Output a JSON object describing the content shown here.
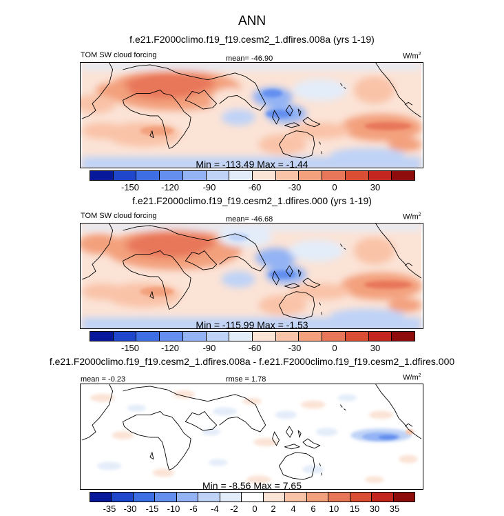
{
  "main_title": "ANN",
  "colors": {
    "cbar1": [
      "#08189b",
      "#1f47cc",
      "#3d6ee4",
      "#648fef",
      "#93b3f4",
      "#bfd3f7",
      "#e3ecf9",
      "#fbe3d6",
      "#f9c3a8",
      "#f3a07d",
      "#e8775a",
      "#da4e33",
      "#c2261e",
      "#8f0c0d"
    ],
    "cbar2": [
      "#08189b",
      "#1f47cc",
      "#3d6ee4",
      "#648fef",
      "#93b3f4",
      "#bfd3f7",
      "#e3ecf9",
      "#ffffff",
      "#fbe3d6",
      "#f9c3a8",
      "#f3a07d",
      "#e8775a",
      "#da4e33",
      "#c2261e",
      "#8f0c0d"
    ]
  },
  "panels": [
    {
      "title": "f.e21.F2000climo.f19_f19.cesm2_1.dfires.008a (yrs 1-19)",
      "left_label": "TOM SW cloud forcing",
      "mean_label": "mean= -46.90",
      "units": "W/m",
      "units_sup": "2",
      "minmax": "Min = -113.49 Max =  -1.44"
    },
    {
      "title": "f.e21.F2000climo.f19_f19.cesm2_1.dfires.000 (yrs 1-19)",
      "left_label": "TOM SW cloud forcing",
      "mean_label": "mean= -46.68",
      "units": "W/m",
      "units_sup": "2",
      "minmax": "Min = -115.99 Max =  -1.53"
    },
    {
      "title": "f.e21.F2000climo.f19_f19.cesm2_1.dfires.008a - f.e21.F2000climo.f19_f19.cesm2_1.dfires.000",
      "left_label": "mean =  -0.23",
      "mean_label": "rmse =  1.78",
      "units": "W/m",
      "units_sup": "2",
      "minmax": "Min =  -8.56 Max =   7.65"
    }
  ],
  "chart_data": [
    {
      "type": "heatmap",
      "title": "f.e21.F2000climo.f19_f19.cesm2_1.dfires.008a (yrs 1-19)",
      "variable": "TOM SW cloud forcing",
      "units": "W/m2",
      "mean": -46.9,
      "min": -113.49,
      "max": -1.44,
      "contour_levels": [
        -150,
        -135,
        -120,
        -105,
        -90,
        -75,
        -60,
        -45,
        -30,
        -15,
        0,
        15,
        30
      ],
      "colorbar_labels": [
        "-150",
        "-120",
        "-90",
        "-60",
        "-30",
        "0",
        "30"
      ]
    },
    {
      "type": "heatmap",
      "title": "f.e21.F2000climo.f19_f19.cesm2_1.dfires.000 (yrs 1-19)",
      "variable": "TOM SW cloud forcing",
      "units": "W/m2",
      "mean": -46.68,
      "min": -115.99,
      "max": -1.53,
      "contour_levels": [
        -150,
        -135,
        -120,
        -105,
        -90,
        -75,
        -60,
        -45,
        -30,
        -15,
        0,
        15,
        30
      ],
      "colorbar_labels": [
        "-150",
        "-120",
        "-90",
        "-60",
        "-30",
        "0",
        "30"
      ]
    },
    {
      "type": "heatmap",
      "title": "f.e21.F2000climo.f19_f19.cesm2_1.dfires.008a - f.e21.F2000climo.f19_f19.cesm2_1.dfires.000",
      "units": "W/m2",
      "mean": -0.23,
      "rmse": 1.78,
      "min": -8.56,
      "max": 7.65,
      "contour_levels": [
        -35,
        -30,
        -15,
        -10,
        -6,
        -4,
        -2,
        0,
        2,
        4,
        6,
        10,
        15,
        30,
        35
      ],
      "colorbar_labels": [
        "-35",
        "-30",
        "-15",
        "-10",
        "-6",
        "-4",
        "-2",
        "0",
        "2",
        "4",
        "6",
        "10",
        "15",
        "30",
        "35"
      ]
    }
  ]
}
